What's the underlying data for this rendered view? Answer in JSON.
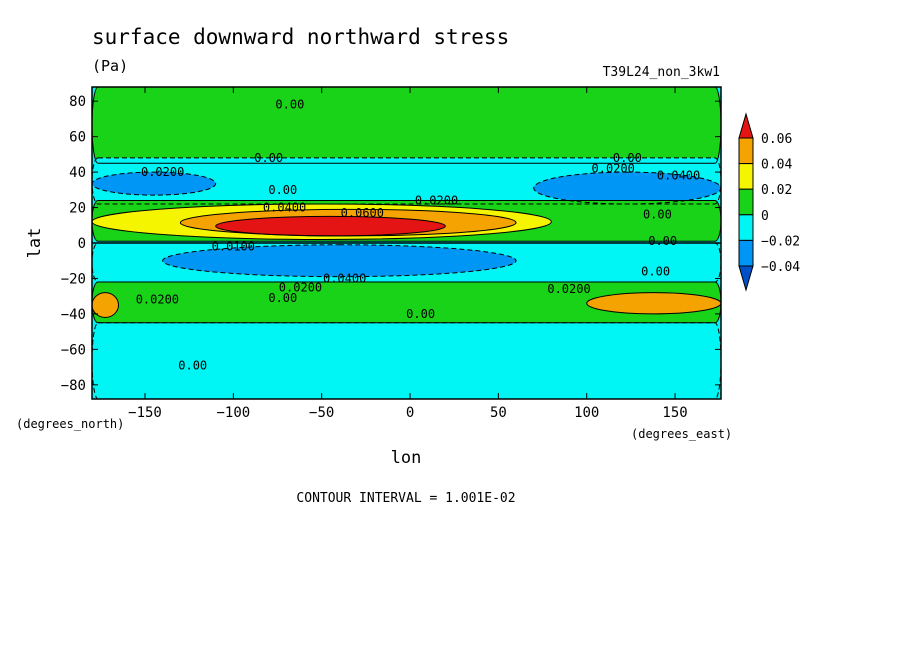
{
  "chart_data": {
    "type": "heatmap",
    "title": "surface downward northward stress",
    "units": "(Pa)",
    "dataset": "T39L24_non_3kw1",
    "xlabel": "lon",
    "ylabel": "lat",
    "x_unit": "(degrees_east)",
    "y_unit": "(degrees_north)",
    "xlim": [
      -180,
      176
    ],
    "ylim": [
      -88,
      88
    ],
    "x_ticks": [
      -150,
      -100,
      -50,
      0,
      50,
      100,
      150
    ],
    "x_tick_labels": [
      "−150",
      "−100",
      "−50",
      "0",
      "50",
      "100",
      "150"
    ],
    "y_ticks": [
      -80,
      -60,
      -40,
      -20,
      0,
      20,
      40,
      60,
      80
    ],
    "y_tick_labels": [
      "−80",
      "−60",
      "−40",
      "−20",
      "0",
      "20",
      "40",
      "60",
      "80"
    ],
    "contour_interval": "CONTOUR INTERVAL = 1.001E-02",
    "colorbar": {
      "levels": [
        {
          "label": "0.06",
          "color": "#e51414"
        },
        {
          "label": "0.04",
          "color": "#f5a300"
        },
        {
          "label": "0.02",
          "color": "#f5f500"
        },
        {
          "label": "0",
          "color": "#19d319"
        },
        {
          "label": "−0.02",
          "color": "#00f5f5"
        },
        {
          "label": "−0.04",
          "color": "#0096f5"
        }
      ],
      "bins": [
        {
          "range": "> 0.06",
          "color": "#e51414"
        },
        {
          "range": "0.04 to 0.06",
          "color": "#f5a300"
        },
        {
          "range": "0.02 to 0.04",
          "color": "#f5f500"
        },
        {
          "range": "0 to 0.02",
          "color": "#19d319"
        },
        {
          "range": "-0.02 to 0",
          "color": "#00f5f5"
        },
        {
          "range": "-0.04 to -0.02",
          "color": "#0096f5"
        },
        {
          "range": "< -0.04",
          "color": "#0050c8"
        }
      ]
    },
    "field_regions": [
      {
        "name": "northern-green-band",
        "lon": [
          -180,
          176
        ],
        "lat": [
          45,
          88
        ],
        "value": 0.01
      },
      {
        "name": "northern-cyan-band",
        "lon": [
          -180,
          176
        ],
        "lat": [
          22,
          48
        ],
        "value": -0.01
      },
      {
        "name": "pacific-jet-blue-cell",
        "lon": [
          -180,
          -110
        ],
        "lat": [
          27,
          40
        ],
        "value": -0.03
      },
      {
        "name": "atlantic-jet-blue-cell",
        "lon": [
          70,
          176
        ],
        "lat": [
          22,
          40
        ],
        "value": -0.03
      },
      {
        "name": "tropical-north-green",
        "lon": [
          -180,
          176
        ],
        "lat": [
          1,
          24
        ],
        "value": 0.01
      },
      {
        "name": "tropical-north-yellow",
        "lon": [
          -180,
          80
        ],
        "lat": [
          2,
          22
        ],
        "value": 0.03
      },
      {
        "name": "tropical-north-orange",
        "lon": [
          -130,
          60
        ],
        "lat": [
          4,
          19
        ],
        "value": 0.05
      },
      {
        "name": "tropical-north-red",
        "lon": [
          -110,
          20
        ],
        "lat": [
          4,
          15
        ],
        "value": 0.065
      },
      {
        "name": "tropical-south-cyan",
        "lon": [
          -180,
          176
        ],
        "lat": [
          -22,
          0
        ],
        "value": -0.01
      },
      {
        "name": "tropical-south-blue",
        "lon": [
          -140,
          60
        ],
        "lat": [
          -19,
          -1
        ],
        "value": -0.03
      },
      {
        "name": "southern-green-band",
        "lon": [
          -180,
          176
        ],
        "lat": [
          -45,
          -22
        ],
        "value": 0.01
      },
      {
        "name": "southern-orange-west",
        "lon": [
          -180,
          -165
        ],
        "lat": [
          -42,
          -28
        ],
        "value": 0.05
      },
      {
        "name": "southern-orange-east",
        "lon": [
          100,
          176
        ],
        "lat": [
          -40,
          -28
        ],
        "value": 0.05
      },
      {
        "name": "southern-cyan-band",
        "lon": [
          -180,
          176
        ],
        "lat": [
          -88,
          -45
        ],
        "value": -0.01
      }
    ],
    "contour_labels": [
      {
        "text": "0.00",
        "lon": -68,
        "lat": 78
      },
      {
        "text": "0.00",
        "lon": -80,
        "lat": 48
      },
      {
        "text": "0.0200",
        "lon": -140,
        "lat": 40
      },
      {
        "text": "0.00",
        "lon": -72,
        "lat": 30
      },
      {
        "text": "0.0400",
        "lon": -71,
        "lat": 20
      },
      {
        "text": "0.0600",
        "lon": -27,
        "lat": 17
      },
      {
        "text": "0.0200",
        "lon": 15,
        "lat": 24
      },
      {
        "text": "0.0100",
        "lon": -100,
        "lat": -2
      },
      {
        "text": "0.0400",
        "lon": -37,
        "lat": -20
      },
      {
        "text": "0.0200",
        "lon": -62,
        "lat": -25
      },
      {
        "text": "0.00",
        "lon": -72,
        "lat": -31
      },
      {
        "text": "0.0200",
        "lon": -143,
        "lat": -32
      },
      {
        "text": "0.00",
        "lon": 6,
        "lat": -40
      },
      {
        "text": "0.00",
        "lon": -123,
        "lat": -69
      },
      {
        "text": "0.00",
        "lon": 123,
        "lat": 48
      },
      {
        "text": "0.0200",
        "lon": 115,
        "lat": 42
      },
      {
        "text": "0.0400",
        "lon": 152,
        "lat": 38
      },
      {
        "text": "0.00",
        "lon": 140,
        "lat": 16
      },
      {
        "text": "0.00",
        "lon": 143,
        "lat": 1
      },
      {
        "text": "0.00",
        "lon": 139,
        "lat": -16
      },
      {
        "text": "0.0200",
        "lon": 90,
        "lat": -26
      }
    ]
  }
}
